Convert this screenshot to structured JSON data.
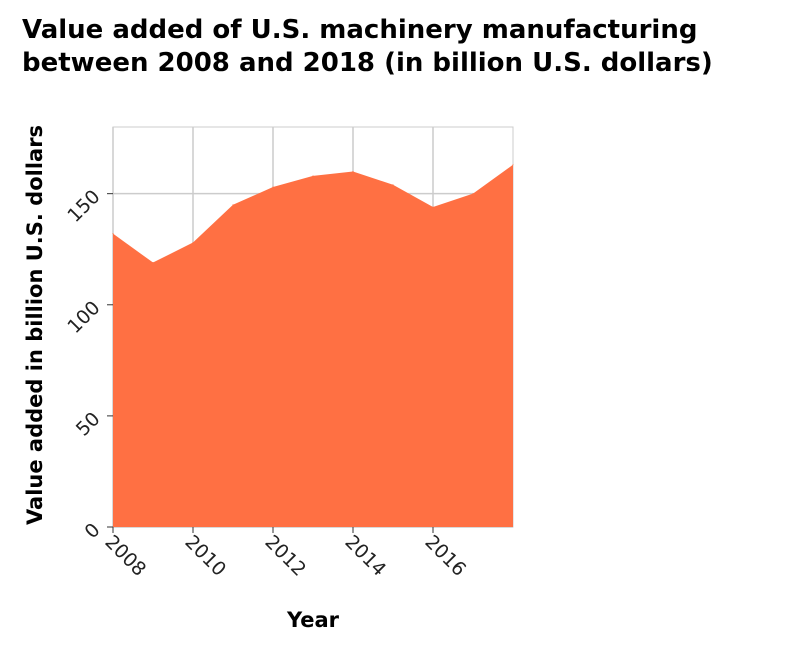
{
  "chart_data": {
    "type": "area",
    "title_lines": [
      "Value added of U.S. machinery manufacturing",
      "between 2008 and 2018 (in billion U.S. dollars)"
    ],
    "xlabel": "Year",
    "ylabel": "Value added in billion U.S. dollars",
    "x": [
      2008,
      2009,
      2010,
      2011,
      2012,
      2013,
      2014,
      2015,
      2016,
      2017,
      2018
    ],
    "series": [
      {
        "values": [
          132,
          119,
          128,
          145,
          153,
          158,
          160,
          154,
          144,
          150,
          163
        ]
      }
    ],
    "xlim": [
      2008,
      2018
    ],
    "ylim": [
      0,
      180
    ],
    "xticks": [
      2008,
      2010,
      2012,
      2014,
      2016
    ],
    "yticks": [
      0,
      50,
      100,
      150
    ],
    "grid": true,
    "legend": "none",
    "colors": {
      "fill": "#ff7043",
      "grid": "#cccccc",
      "background": "#ffffff"
    }
  }
}
